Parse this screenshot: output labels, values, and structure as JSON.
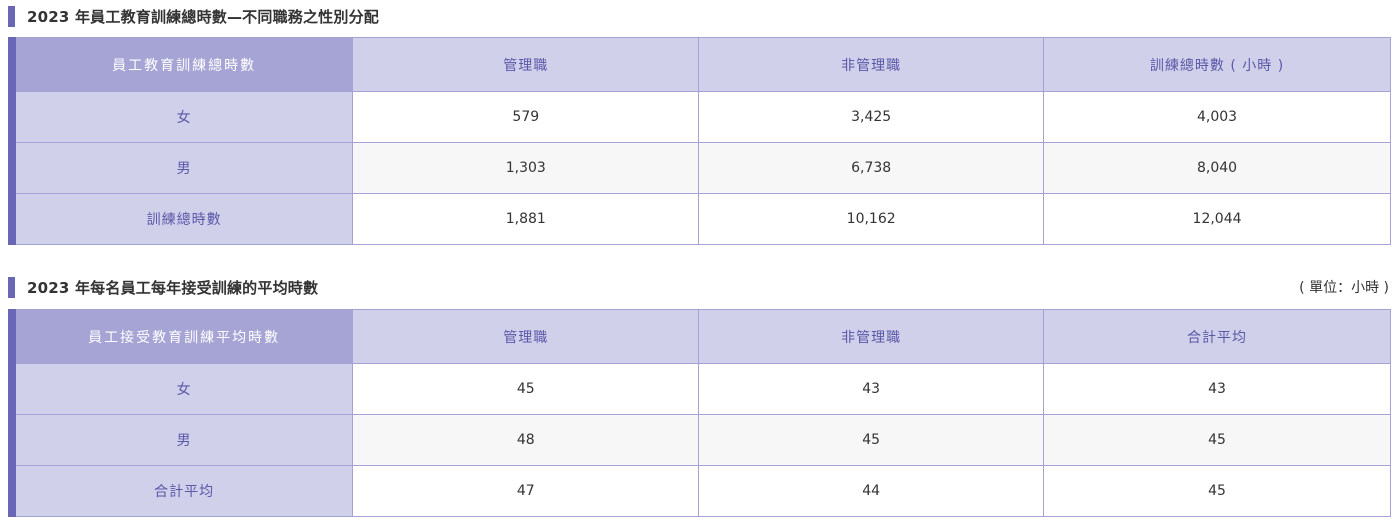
{
  "table1": {
    "title": "2023 年員工教育訓練總時數—不同職務之性別分配",
    "corner": "員工教育訓練總時數",
    "columns": [
      "管理職",
      "非管理職",
      "訓練總時數 ( 小時 )"
    ],
    "rows": [
      {
        "label": "女",
        "values": [
          "579",
          "3,425",
          "4,003"
        ]
      },
      {
        "label": "男",
        "values": [
          "1,303",
          "6,738",
          "8,040"
        ]
      },
      {
        "label": "訓練總時數",
        "values": [
          "1,881",
          "10,162",
          "12,044"
        ]
      }
    ]
  },
  "table2": {
    "title": "2023 年每名員工每年接受訓練的平均時數",
    "unit": "( 單位：小時 )",
    "corner": "員工接受教育訓練平均時數",
    "columns": [
      "管理職",
      "非管理職",
      "合計平均"
    ],
    "rows": [
      {
        "label": "女",
        "values": [
          "45",
          "43",
          "43"
        ]
      },
      {
        "label": "男",
        "values": [
          "48",
          "45",
          "45"
        ]
      },
      {
        "label": "合計平均",
        "values": [
          "47",
          "44",
          "45"
        ]
      }
    ]
  }
}
